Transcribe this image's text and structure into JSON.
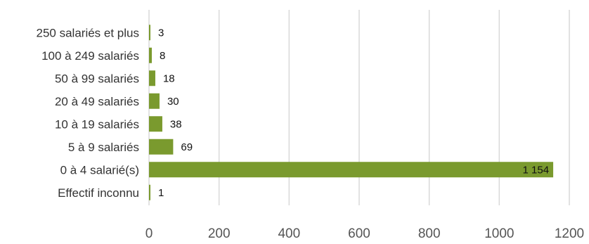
{
  "chart_data": {
    "type": "bar",
    "orientation": "horizontal",
    "categories": [
      "250 salariés et plus",
      "100 à 249 salariés",
      "50 à 99 salariés",
      "20 à 49 salariés",
      "10 à 19 salariés",
      "5 à 9 salariés",
      "0 à 4 salarié(s)",
      "Effectif inconnu"
    ],
    "values": [
      3,
      8,
      18,
      30,
      38,
      69,
      1154,
      1
    ],
    "data_labels": [
      "3",
      "8",
      "18",
      "30",
      "38",
      "69",
      "1 154",
      "1"
    ],
    "xlim": [
      0,
      1200
    ],
    "x_ticks": [
      0,
      200,
      400,
      600,
      800,
      1000,
      1200
    ],
    "x_tick_labels": [
      "0",
      "200",
      "400",
      "600",
      "800",
      "1000",
      "1200"
    ],
    "grid": "vertical",
    "bar_color": "#7a9a2e",
    "grid_color": "#d9d9d9"
  }
}
